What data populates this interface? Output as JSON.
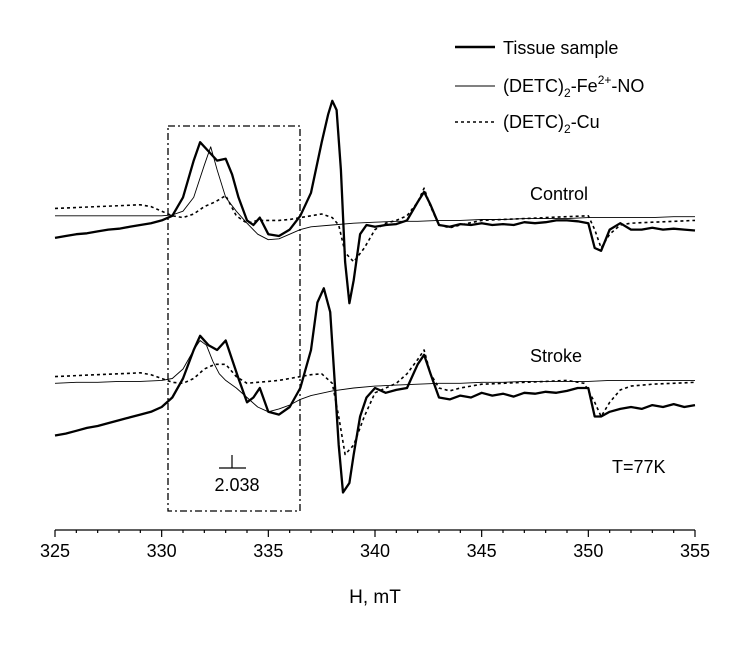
{
  "chart_data": {
    "type": "line",
    "xlabel": "H, mT",
    "xlim": [
      325,
      355
    ],
    "x_ticks": [
      "325",
      "330",
      "335",
      "340",
      "345",
      "350",
      "355"
    ],
    "legend": {
      "position": "top-right",
      "entries": [
        {
          "base": "Tissue sample",
          "sub": "",
          "sup": "",
          "tail": "",
          "style": "thick-solid"
        },
        {
          "base": "(DETC)",
          "sub": "2",
          "mid": "-Fe",
          "sup": "2+",
          "tail": "-NO",
          "style": "thin-solid"
        },
        {
          "base": "(DETC)",
          "sub": "2",
          "mid": "-Cu",
          "sup": "",
          "tail": "",
          "style": "dotted"
        }
      ]
    },
    "panels": [
      {
        "name": "Control",
        "series": [
          {
            "name": "Tissue sample",
            "style": "thick-solid",
            "x": [
              325.0,
              325.5,
              326.0,
              326.5,
              327.0,
              327.5,
              328.0,
              328.5,
              329.0,
              329.5,
              330.0,
              330.5,
              331.0,
              331.5,
              331.8,
              332.2,
              332.6,
              333.0,
              333.3,
              333.6,
              334.0,
              334.3,
              334.6,
              335.0,
              335.5,
              336.0,
              336.5,
              337.0,
              337.5,
              337.8,
              338.0,
              338.2,
              338.4,
              338.6,
              338.8,
              339.0,
              339.3,
              339.6,
              340.0,
              340.5,
              341.0,
              341.5,
              342.0,
              342.3,
              342.6,
              343.0,
              343.5,
              344.0,
              344.5,
              345.0,
              345.5,
              346.0,
              346.5,
              347.0,
              347.5,
              348.0,
              348.5,
              349.0,
              349.5,
              350.0,
              350.3,
              350.6,
              351.0,
              351.5,
              352.0,
              352.5,
              353.0,
              353.5,
              354.0,
              354.5,
              355.0
            ],
            "y": [
              -0.14,
              -0.12,
              -0.1,
              -0.09,
              -0.07,
              -0.05,
              -0.04,
              -0.02,
              0.0,
              0.02,
              0.05,
              0.1,
              0.3,
              0.7,
              0.9,
              0.8,
              0.7,
              0.72,
              0.55,
              0.3,
              0.05,
              0.0,
              0.08,
              -0.1,
              -0.12,
              -0.05,
              0.1,
              0.35,
              0.9,
              1.2,
              1.35,
              1.25,
              0.6,
              -0.4,
              -0.85,
              -0.6,
              -0.1,
              0.0,
              -0.02,
              0.0,
              0.01,
              0.05,
              0.25,
              0.36,
              0.22,
              0.0,
              -0.02,
              0.01,
              0.0,
              0.02,
              0.0,
              0.01,
              0.0,
              0.03,
              0.02,
              0.03,
              0.05,
              0.05,
              0.04,
              0.02,
              -0.25,
              -0.28,
              -0.05,
              0.02,
              -0.05,
              -0.05,
              -0.03,
              -0.05,
              -0.04,
              -0.05,
              -0.06
            ]
          },
          {
            "name": "(DETC)2-Fe2+-NO",
            "style": "thin-solid",
            "x": [
              325.0,
              326.0,
              327.0,
              328.0,
              329.0,
              330.0,
              330.5,
              331.0,
              331.5,
              332.0,
              332.3,
              332.6,
              333.0,
              333.5,
              334.0,
              334.5,
              335.0,
              335.5,
              336.0,
              336.5,
              337.0,
              338.0,
              339.0,
              340.0,
              341.0,
              342.0,
              343.0,
              344.0,
              345.0,
              346.0,
              347.0,
              348.0,
              349.0,
              350.0,
              351.0,
              352.0,
              353.0,
              354.0,
              355.0
            ],
            "y": [
              0.1,
              0.1,
              0.1,
              0.1,
              0.1,
              0.1,
              0.11,
              0.15,
              0.3,
              0.65,
              0.85,
              0.6,
              0.3,
              0.15,
              0.02,
              -0.1,
              -0.16,
              -0.15,
              -0.1,
              -0.05,
              -0.02,
              0.0,
              0.02,
              0.03,
              0.04,
              0.04,
              0.05,
              0.05,
              0.06,
              0.06,
              0.07,
              0.07,
              0.07,
              0.08,
              0.08,
              0.08,
              0.08,
              0.09,
              0.09
            ]
          },
          {
            "name": "(DETC)2-Cu",
            "style": "dotted",
            "x": [
              325.0,
              326.0,
              327.0,
              328.0,
              329.0,
              329.5,
              330.0,
              330.5,
              331.0,
              331.5,
              332.0,
              332.5,
              333.0,
              333.5,
              334.0,
              334.5,
              335.0,
              335.5,
              336.0,
              336.5,
              337.0,
              337.5,
              338.0,
              338.3,
              338.6,
              339.0,
              339.5,
              340.0,
              340.5,
              341.0,
              341.5,
              342.0,
              342.3,
              342.6,
              343.0,
              343.5,
              344.0,
              345.0,
              346.0,
              347.0,
              348.0,
              349.0,
              350.0,
              350.3,
              350.6,
              351.0,
              351.5,
              352.0,
              353.0,
              354.0,
              355.0
            ],
            "y": [
              0.18,
              0.19,
              0.2,
              0.21,
              0.22,
              0.2,
              0.15,
              0.1,
              0.08,
              0.12,
              0.2,
              0.25,
              0.32,
              0.1,
              0.02,
              0.05,
              0.05,
              0.05,
              0.06,
              0.08,
              0.1,
              0.12,
              0.08,
              0.0,
              -0.3,
              -0.4,
              -0.25,
              -0.05,
              0.02,
              0.05,
              0.1,
              0.25,
              0.4,
              0.2,
              0.0,
              -0.03,
              0.0,
              0.05,
              0.06,
              0.07,
              0.08,
              0.09,
              0.1,
              -0.05,
              -0.25,
              -0.1,
              0.0,
              0.02,
              0.03,
              0.04,
              0.05
            ]
          }
        ]
      },
      {
        "name": "Stroke",
        "series": [
          {
            "name": "Tissue sample",
            "style": "thick-solid",
            "x": [
              325.0,
              325.5,
              326.0,
              326.5,
              327.0,
              327.5,
              328.0,
              328.5,
              329.0,
              329.5,
              330.0,
              330.5,
              331.0,
              331.5,
              331.8,
              332.2,
              332.6,
              333.0,
              333.3,
              333.6,
              334.0,
              334.3,
              334.6,
              335.0,
              335.5,
              336.0,
              336.5,
              337.0,
              337.3,
              337.6,
              337.9,
              338.1,
              338.3,
              338.5,
              338.8,
              339.0,
              339.3,
              339.6,
              340.0,
              340.5,
              341.0,
              341.5,
              342.0,
              342.3,
              342.6,
              343.0,
              343.5,
              344.0,
              344.5,
              345.0,
              345.5,
              346.0,
              346.5,
              347.0,
              347.5,
              348.0,
              348.5,
              349.0,
              349.5,
              350.0,
              350.3,
              350.6,
              351.0,
              351.5,
              352.0,
              352.5,
              353.0,
              353.5,
              354.0,
              354.5,
              355.0
            ],
            "y": [
              -0.5,
              -0.48,
              -0.45,
              -0.42,
              -0.4,
              -0.37,
              -0.34,
              -0.31,
              -0.28,
              -0.25,
              -0.2,
              -0.1,
              0.1,
              0.4,
              0.55,
              0.45,
              0.4,
              0.5,
              0.3,
              0.1,
              -0.15,
              -0.1,
              0.0,
              -0.25,
              -0.28,
              -0.2,
              0.0,
              0.4,
              0.9,
              1.05,
              0.8,
              0.1,
              -0.6,
              -1.1,
              -1.0,
              -0.7,
              -0.3,
              -0.1,
              0.0,
              -0.05,
              -0.02,
              0.0,
              0.25,
              0.35,
              0.15,
              -0.1,
              -0.12,
              -0.08,
              -0.1,
              -0.05,
              -0.08,
              -0.06,
              -0.09,
              -0.05,
              -0.06,
              -0.04,
              -0.05,
              -0.03,
              0.0,
              0.0,
              -0.3,
              -0.3,
              -0.25,
              -0.22,
              -0.2,
              -0.22,
              -0.18,
              -0.2,
              -0.17,
              -0.2,
              -0.18
            ]
          },
          {
            "name": "(DETC)2-Fe2+-NO",
            "style": "thin-solid",
            "x": [
              325.0,
              326.0,
              327.0,
              328.0,
              329.0,
              330.0,
              330.5,
              331.0,
              331.5,
              331.8,
              332.1,
              332.4,
              332.7,
              333.0,
              333.5,
              334.0,
              334.5,
              335.0,
              335.5,
              336.0,
              336.5,
              337.0,
              338.0,
              339.0,
              340.0,
              341.0,
              342.0,
              343.0,
              344.0,
              345.0,
              346.0,
              347.0,
              348.0,
              349.0,
              350.0,
              351.0,
              352.0,
              353.0,
              354.0,
              355.0
            ],
            "y": [
              0.05,
              0.06,
              0.06,
              0.07,
              0.07,
              0.08,
              0.1,
              0.2,
              0.4,
              0.5,
              0.45,
              0.28,
              0.15,
              0.08,
              0.0,
              -0.1,
              -0.2,
              -0.25,
              -0.22,
              -0.18,
              -0.12,
              -0.08,
              -0.03,
              0.0,
              0.02,
              0.03,
              0.04,
              0.05,
              0.05,
              0.06,
              0.06,
              0.07,
              0.07,
              0.07,
              0.07,
              0.08,
              0.08,
              0.08,
              0.08,
              0.08
            ]
          },
          {
            "name": "(DETC)2-Cu",
            "style": "dotted",
            "x": [
              325.0,
              326.0,
              327.0,
              328.0,
              329.0,
              329.5,
              330.0,
              330.5,
              331.0,
              331.5,
              332.0,
              332.5,
              333.0,
              333.5,
              334.0,
              334.5,
              335.0,
              335.5,
              336.0,
              336.5,
              337.0,
              337.5,
              338.0,
              338.3,
              338.6,
              339.0,
              339.5,
              340.0,
              340.5,
              341.0,
              341.5,
              342.0,
              342.3,
              342.6,
              343.0,
              343.5,
              344.0,
              345.0,
              346.0,
              347.0,
              348.0,
              349.0,
              349.8,
              350.3,
              350.6,
              351.0,
              351.5,
              352.0,
              353.0,
              354.0,
              355.0
            ],
            "y": [
              0.12,
              0.13,
              0.14,
              0.15,
              0.16,
              0.14,
              0.1,
              0.06,
              0.05,
              0.1,
              0.2,
              0.25,
              0.25,
              0.12,
              0.05,
              0.06,
              0.07,
              0.08,
              0.1,
              0.12,
              0.14,
              0.15,
              0.05,
              -0.3,
              -0.7,
              -0.6,
              -0.3,
              -0.05,
              0.0,
              0.05,
              0.15,
              0.3,
              0.4,
              0.15,
              0.0,
              -0.03,
              0.0,
              0.04,
              0.05,
              0.06,
              0.07,
              0.08,
              0.05,
              -0.15,
              -0.3,
              -0.15,
              -0.02,
              0.02,
              0.04,
              0.05,
              0.06
            ]
          }
        ]
      }
    ],
    "annotations": {
      "g_label": "2.038",
      "temperature": "T=77K"
    }
  }
}
